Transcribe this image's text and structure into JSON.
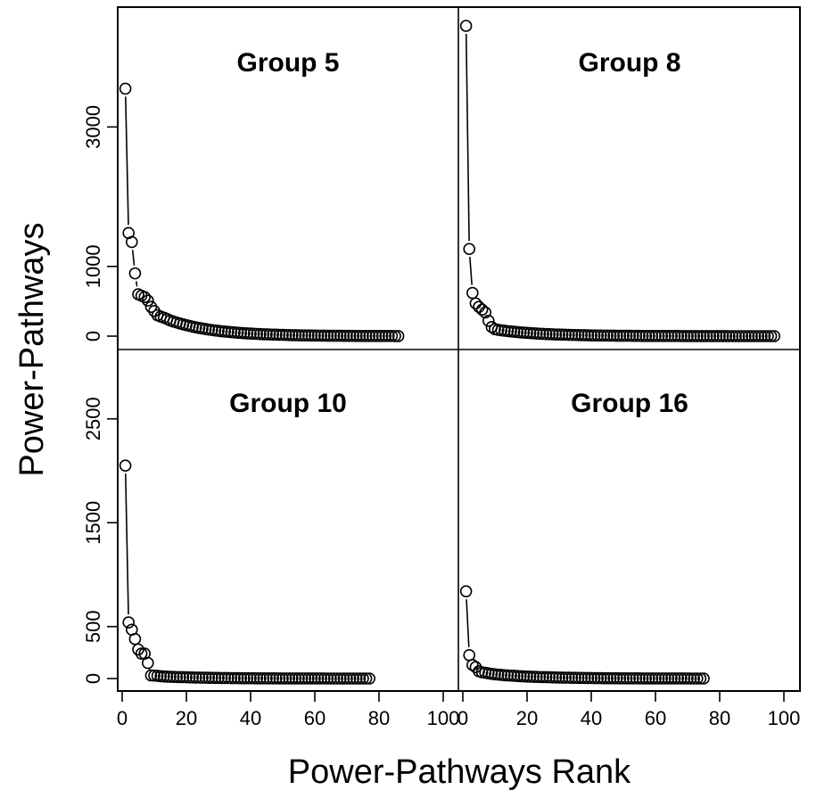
{
  "chart_data": {
    "type": "scatter",
    "layout": "2x2 panels with shared axes",
    "xlabel": "Power-Pathways Rank",
    "ylabel": "Power-Pathways",
    "x_ticks": [
      0,
      20,
      40,
      60,
      80,
      100
    ],
    "x_tick_labels": [
      "0",
      "20",
      "40",
      "60",
      "80",
      "100"
    ],
    "xlim": [
      0,
      100
    ],
    "top_row_y_ticks": [
      0,
      1000,
      3000
    ],
    "top_row_y_tick_labels": [
      "0",
      "1000",
      "3000"
    ],
    "top_row_ylim": [
      0,
      4000
    ],
    "bottom_row_y_ticks": [
      0,
      500,
      1500,
      2500
    ],
    "bottom_row_y_tick_labels": [
      "0",
      "500",
      "1500",
      "2500"
    ],
    "bottom_row_ylim": [
      0,
      3000
    ],
    "grid": false,
    "marker": "open circle",
    "panels": [
      {
        "title": "Group 5",
        "position": "top-left",
        "head": [
          3550,
          1480,
          1350,
          900,
          600,
          580,
          560,
          510,
          420,
          360,
          300,
          280,
          265,
          245,
          225
        ],
        "n": 86
      },
      {
        "title": "Group 8",
        "position": "top-right",
        "head": [
          4450,
          1250,
          620,
          470,
          420,
          380,
          340,
          220,
          130,
          100,
          90
        ],
        "n": 97
      },
      {
        "title": "Group 10",
        "position": "bottom-left",
        "head": [
          2050,
          540,
          470,
          380,
          280,
          240,
          240,
          150,
          30,
          28,
          26,
          22,
          20,
          18
        ],
        "n": 77
      },
      {
        "title": "Group 16",
        "position": "bottom-right",
        "head": [
          840,
          225,
          130,
          110,
          70,
          60,
          55,
          50,
          45,
          40
        ],
        "n": 75
      }
    ]
  }
}
